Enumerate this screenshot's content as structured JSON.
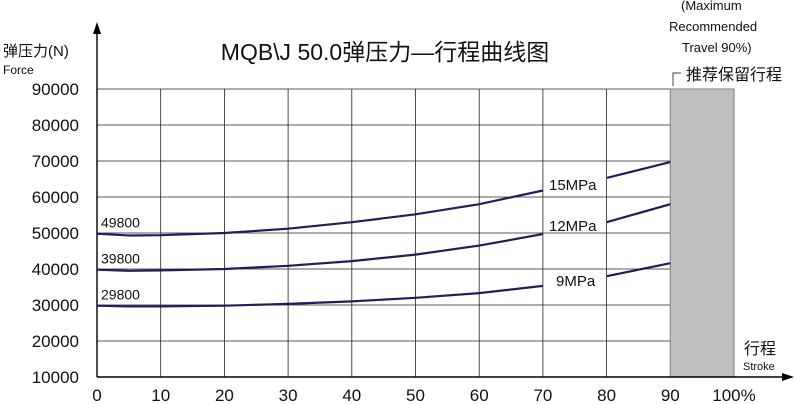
{
  "chart_data": {
    "type": "line",
    "title": "MQB\\J 50.0弹压力—行程曲线图",
    "ylabel_cn": "弹压力(N)",
    "ylabel_en": "Force",
    "xlabel_cn": "行程",
    "xlabel_en": "Stroke",
    "xlim": [
      0,
      100
    ],
    "ylim": [
      10000,
      90000
    ],
    "x_ticks": [
      0,
      10,
      20,
      30,
      40,
      50,
      60,
      70,
      80,
      90,
      100
    ],
    "x_tick_labels": [
      "0",
      "10",
      "20",
      "30",
      "40",
      "50",
      "60",
      "70",
      "80",
      "90",
      "100%"
    ],
    "y_ticks": [
      10000,
      20000,
      30000,
      40000,
      50000,
      60000,
      70000,
      80000,
      90000
    ],
    "y_tick_labels": [
      "10000",
      "20000",
      "30000",
      "40000",
      "50000",
      "60000",
      "70000",
      "80000",
      "90000"
    ],
    "grid": true,
    "series": [
      {
        "name": "15MPa",
        "start_label": "49800",
        "x": [
          0,
          5,
          10,
          20,
          30,
          40,
          50,
          60,
          70,
          80,
          90
        ],
        "y": [
          49800,
          49300,
          49400,
          50000,
          51200,
          53000,
          55200,
          58000,
          61800,
          65300,
          69700
        ]
      },
      {
        "name": "12MPa",
        "start_label": "39800",
        "x": [
          0,
          5,
          10,
          20,
          30,
          40,
          50,
          60,
          70,
          80,
          90
        ],
        "y": [
          39800,
          39500,
          39600,
          40000,
          40900,
          42200,
          44000,
          46500,
          49700,
          53000,
          58000
        ]
      },
      {
        "name": "9MPa",
        "start_label": "29800",
        "x": [
          0,
          5,
          10,
          20,
          30,
          40,
          50,
          60,
          70,
          80,
          90
        ],
        "y": [
          29800,
          29600,
          29600,
          29800,
          30300,
          31000,
          32000,
          33300,
          35300,
          38000,
          41600
        ]
      }
    ],
    "reserved_region": {
      "x_from": 90,
      "x_to": 100,
      "label_cn": "推荐保留行程",
      "label_en_lines": [
        "(Maximum",
        "Recommended",
        "Travel 90%)"
      ]
    },
    "colors": {
      "line": "#1f1f5c",
      "grid": "#222222",
      "reserved_fill": "#c0c0c0"
    }
  }
}
